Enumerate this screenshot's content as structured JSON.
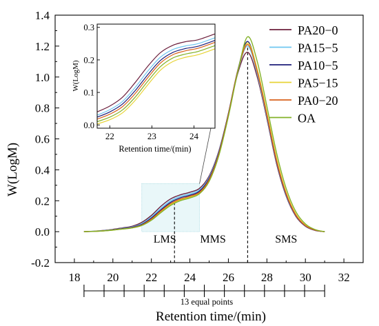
{
  "chart_data": [
    {
      "type": "line",
      "title": "",
      "xlabel": "Retention time/(min)",
      "ylabel": "W(LogM)",
      "xlim": [
        17,
        33
      ],
      "ylim": [
        -0.2,
        1.4
      ],
      "xticks": [
        "18",
        "20",
        "22",
        "24",
        "26",
        "28",
        "30",
        "32"
      ],
      "yticks": [
        "-0.2",
        "0.0",
        "0.2",
        "0.4",
        "0.6",
        "0.8",
        "1.0",
        "1.2",
        "1.4"
      ],
      "grid": false,
      "legend": "top-right",
      "x": [
        18.5,
        19.0,
        19.5,
        20.0,
        20.5,
        21.0,
        21.5,
        22.0,
        22.5,
        23.0,
        23.5,
        24.0,
        24.5,
        25.0,
        25.5,
        26.0,
        26.5,
        27.0,
        27.5,
        28.0,
        28.5,
        29.0,
        29.5,
        30.0,
        30.5,
        31.0
      ],
      "series": [
        {
          "name": "PA20−0",
          "color": "#6b1e3c",
          "values": [
            0.0,
            0.003,
            0.008,
            0.015,
            0.025,
            0.035,
            0.06,
            0.105,
            0.165,
            0.212,
            0.238,
            0.255,
            0.28,
            0.36,
            0.52,
            0.76,
            1.03,
            1.16,
            1.0,
            0.73,
            0.44,
            0.23,
            0.1,
            0.035,
            0.008,
            0.0
          ]
        },
        {
          "name": "PA15−5",
          "color": "#6ec6f0",
          "values": [
            0.0,
            0.003,
            0.007,
            0.013,
            0.022,
            0.031,
            0.052,
            0.095,
            0.152,
            0.2,
            0.228,
            0.245,
            0.27,
            0.352,
            0.515,
            0.762,
            1.04,
            1.2,
            1.02,
            0.74,
            0.45,
            0.235,
            0.104,
            0.037,
            0.009,
            0.0
          ]
        },
        {
          "name": "PA10−5",
          "color": "#1c1c78",
          "values": [
            0.0,
            0.002,
            0.006,
            0.012,
            0.02,
            0.028,
            0.047,
            0.088,
            0.142,
            0.19,
            0.219,
            0.236,
            0.262,
            0.344,
            0.51,
            0.765,
            1.05,
            1.23,
            1.04,
            0.75,
            0.455,
            0.24,
            0.106,
            0.038,
            0.009,
            0.0
          ]
        },
        {
          "name": "PA5−15",
          "color": "#e7d335",
          "values": [
            0.0,
            0.002,
            0.005,
            0.01,
            0.017,
            0.024,
            0.04,
            0.078,
            0.13,
            0.177,
            0.206,
            0.224,
            0.25,
            0.332,
            0.498,
            0.755,
            1.045,
            1.22,
            1.05,
            0.77,
            0.475,
            0.255,
            0.115,
            0.042,
            0.011,
            0.0
          ]
        },
        {
          "name": "PA0−20",
          "color": "#d8611c",
          "values": [
            0.0,
            0.002,
            0.005,
            0.011,
            0.018,
            0.026,
            0.043,
            0.082,
            0.135,
            0.182,
            0.211,
            0.229,
            0.255,
            0.337,
            0.502,
            0.758,
            1.045,
            1.21,
            1.035,
            0.755,
            0.46,
            0.245,
            0.108,
            0.039,
            0.01,
            0.0
          ]
        },
        {
          "name": "OA",
          "color": "#82b127",
          "values": [
            0.0,
            0.002,
            0.005,
            0.01,
            0.017,
            0.024,
            0.04,
            0.074,
            0.124,
            0.17,
            0.2,
            0.218,
            0.245,
            0.325,
            0.49,
            0.745,
            1.04,
            1.26,
            1.1,
            0.81,
            0.51,
            0.28,
            0.13,
            0.05,
            0.014,
            0.0
          ]
        }
      ],
      "annotations": {
        "regions": [
          "LMS",
          "MMS",
          "SMS"
        ],
        "dashed_lines_x": [
          23.2,
          27.0
        ],
        "zoom_box": {
          "x": [
            21.5,
            24.5
          ],
          "y": [
            0.0,
            0.31
          ]
        },
        "bottom_scale": {
          "label": "13 equal points",
          "start": 18.5,
          "end": 31.0,
          "points": 13
        }
      }
    },
    {
      "type": "line",
      "title": "",
      "xlabel": "Retention time/(min)",
      "ylabel": "W(LogM)",
      "xlim": [
        21.7,
        24.5
      ],
      "ylim": [
        -0.01,
        0.31
      ],
      "xticks": [
        "22",
        "23",
        "24"
      ],
      "yticks": [
        "0.0",
        "0.1",
        "0.2",
        "0.3"
      ],
      "x": [
        21.7,
        22.0,
        22.3,
        22.6,
        22.9,
        23.2,
        23.5,
        23.8,
        24.1,
        24.5
      ],
      "series": [
        {
          "name": "PA20−0",
          "color": "#6b1e3c",
          "values": [
            0.04,
            0.058,
            0.085,
            0.13,
            0.18,
            0.222,
            0.245,
            0.256,
            0.262,
            0.28
          ]
        },
        {
          "name": "PA15−5",
          "color": "#6ec6f0",
          "values": [
            0.03,
            0.047,
            0.072,
            0.115,
            0.165,
            0.208,
            0.232,
            0.243,
            0.25,
            0.268
          ]
        },
        {
          "name": "PA10−5",
          "color": "#1c1c78",
          "values": [
            0.024,
            0.04,
            0.064,
            0.105,
            0.154,
            0.198,
            0.223,
            0.235,
            0.242,
            0.26
          ]
        },
        {
          "name": "PA5−15",
          "color": "#e7d335",
          "values": [
            0.003,
            0.016,
            0.037,
            0.075,
            0.123,
            0.168,
            0.195,
            0.208,
            0.216,
            0.234
          ]
        },
        {
          "name": "PA0−20",
          "color": "#d8611c",
          "values": [
            0.018,
            0.033,
            0.056,
            0.096,
            0.145,
            0.19,
            0.216,
            0.228,
            0.236,
            0.254
          ]
        },
        {
          "name": "OA",
          "color": "#82b127",
          "values": [
            0.01,
            0.024,
            0.046,
            0.085,
            0.134,
            0.179,
            0.206,
            0.218,
            0.226,
            0.244
          ]
        }
      ]
    }
  ]
}
